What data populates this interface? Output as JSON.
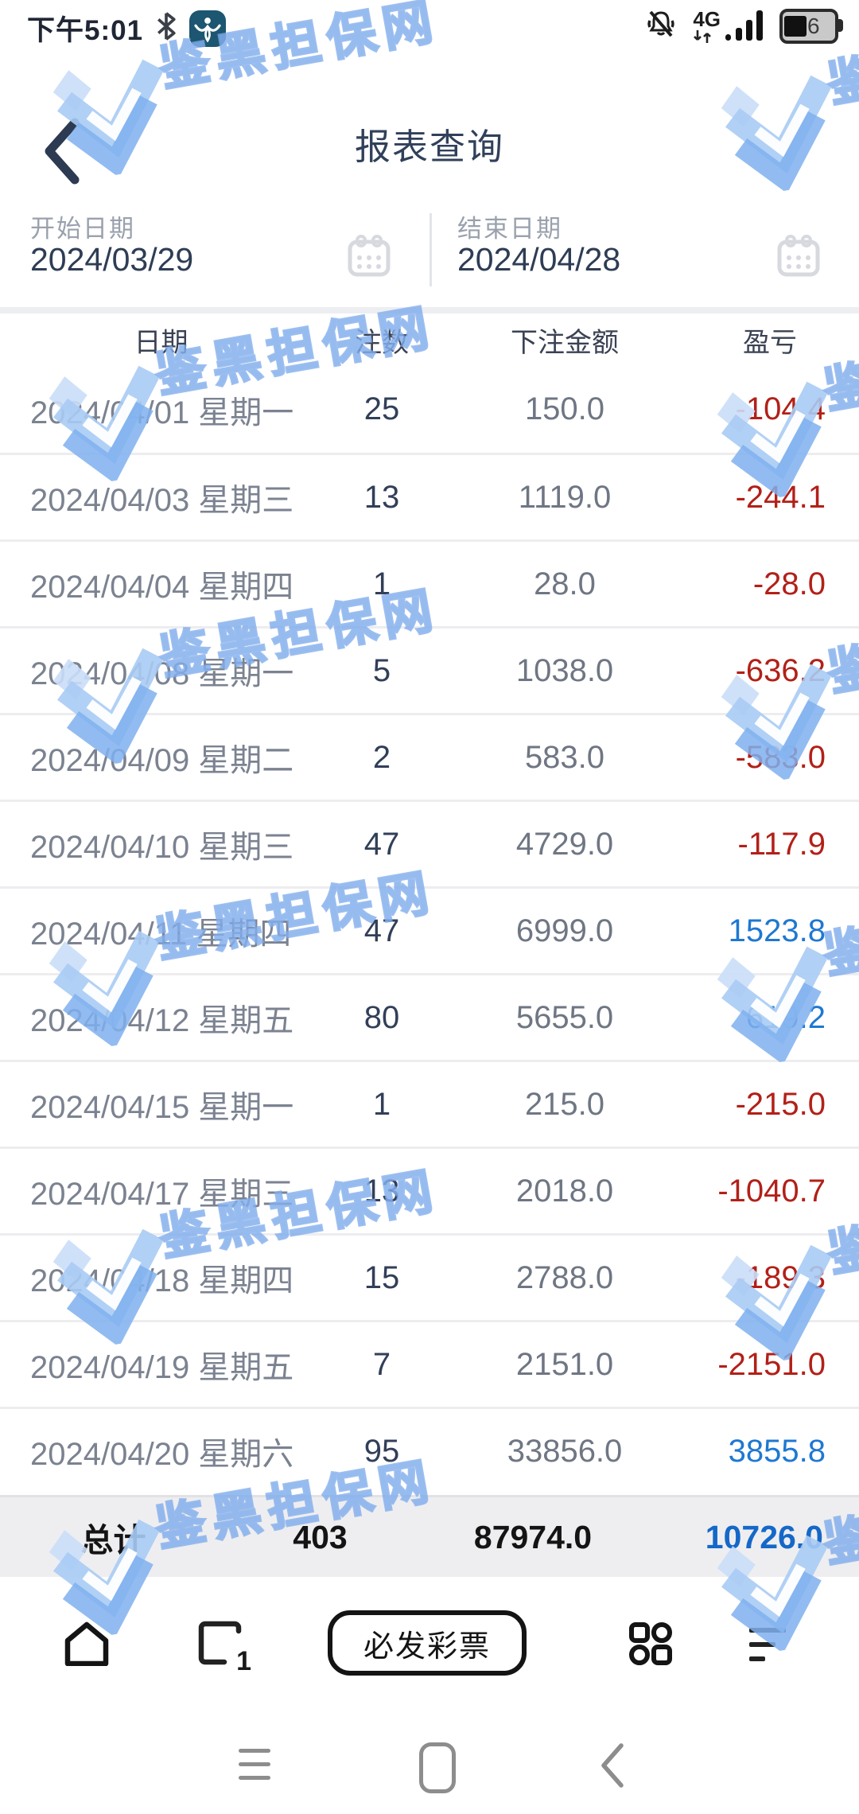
{
  "status_bar": {
    "time": "下午5:01",
    "network": "4G",
    "battery_level": "6",
    "icons": [
      "bluetooth-icon",
      "app-badge-icon",
      "mute-icon",
      "mobile-data-arrows-icon",
      "signal-bars-icon",
      "battery-icon"
    ]
  },
  "header": {
    "title": "报表查询"
  },
  "date_filter": {
    "start": {
      "label": "开始日期",
      "value": "2024/03/29"
    },
    "end": {
      "label": "结束日期",
      "value": "2024/04/28"
    },
    "calendar_icon": "calendar-icon"
  },
  "watermark": {
    "text": "鉴黑担保网",
    "logo": "double-check-ribbon-logo",
    "color": "#7fb0ee"
  },
  "table": {
    "columns": [
      "日期",
      "注数",
      "下注金额",
      "盈亏"
    ],
    "rows": [
      {
        "date": "2024/04/01 星期一",
        "bets": "25",
        "amount": "150.0",
        "pnl": "-104.4"
      },
      {
        "date": "2024/04/03 星期三",
        "bets": "13",
        "amount": "1119.0",
        "pnl": "-244.1"
      },
      {
        "date": "2024/04/04 星期四",
        "bets": "1",
        "amount": "28.0",
        "pnl": "-28.0"
      },
      {
        "date": "2024/04/08 星期一",
        "bets": "5",
        "amount": "1038.0",
        "pnl": "-636.2"
      },
      {
        "date": "2024/04/09 星期二",
        "bets": "2",
        "amount": "583.0",
        "pnl": "-583.0"
      },
      {
        "date": "2024/04/10 星期三",
        "bets": "47",
        "amount": "4729.0",
        "pnl": "-117.9"
      },
      {
        "date": "2024/04/11 星期四",
        "bets": "47",
        "amount": "6999.0",
        "pnl": "1523.8"
      },
      {
        "date": "2024/04/12 星期五",
        "bets": "80",
        "amount": "5655.0",
        "pnl": "619.2"
      },
      {
        "date": "2024/04/15 星期一",
        "bets": "1",
        "amount": "215.0",
        "pnl": "-215.0"
      },
      {
        "date": "2024/04/17 星期三",
        "bets": "13",
        "amount": "2018.0",
        "pnl": "-1040.7"
      },
      {
        "date": "2024/04/18 星期四",
        "bets": "15",
        "amount": "2788.0",
        "pnl": "-189.3"
      },
      {
        "date": "2024/04/19 星期五",
        "bets": "7",
        "amount": "2151.0",
        "pnl": "-2151.0"
      },
      {
        "date": "2024/04/20 星期六",
        "bets": "95",
        "amount": "33856.0",
        "pnl": "3855.8"
      }
    ],
    "total": {
      "label": "总计",
      "bets": "403",
      "amount": "87974.0",
      "pnl": "10726.0"
    }
  },
  "bottom_nav": {
    "center_button": "必发彩票",
    "recents_badge": "1",
    "icons": [
      "home-icon",
      "recents-icon",
      "lottery-pill-button",
      "apps-grid-icon",
      "sort-icon"
    ]
  },
  "system_nav": {
    "icons": [
      "menu-icon",
      "home-pill-icon",
      "back-chevron-icon"
    ]
  },
  "colors": {
    "accent_blue": "#1e78d2",
    "negative_red": "#b22018",
    "title_navy": "#31405a",
    "total_bg": "#eeeef0",
    "label_gray": "#9aa1ad"
  }
}
